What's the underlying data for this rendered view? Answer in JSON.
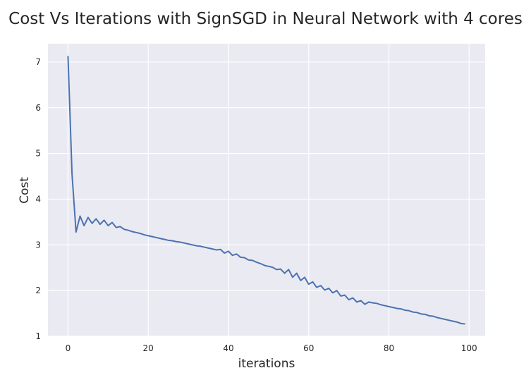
{
  "chart_data": {
    "type": "line",
    "title": "Cost Vs Iterations with SignSGD in Neural Network with 4 cores",
    "xlabel": "iterations",
    "ylabel": "Cost",
    "xlim": [
      -5,
      104
    ],
    "ylim": [
      1.0,
      7.4
    ],
    "xticks": [
      0,
      20,
      40,
      60,
      80,
      100
    ],
    "yticks": [
      1,
      2,
      3,
      4,
      5,
      6,
      7
    ],
    "grid": true,
    "style": {
      "background": "#eaeaf2",
      "grid_color": "#ffffff",
      "line_color": "#4c72b0"
    },
    "series": [
      {
        "values": [
          7.13,
          4.55,
          3.28,
          3.63,
          3.42,
          3.6,
          3.47,
          3.57,
          3.45,
          3.54,
          3.42,
          3.49,
          3.38,
          3.4,
          3.34,
          3.32,
          3.29,
          3.27,
          3.25,
          3.22,
          3.2,
          3.18,
          3.16,
          3.14,
          3.12,
          3.1,
          3.09,
          3.07,
          3.06,
          3.04,
          3.02,
          3.0,
          2.98,
          2.97,
          2.95,
          2.93,
          2.91,
          2.89,
          2.9,
          2.82,
          2.86,
          2.77,
          2.8,
          2.73,
          2.72,
          2.67,
          2.66,
          2.62,
          2.59,
          2.55,
          2.53,
          2.51,
          2.46,
          2.47,
          2.38,
          2.46,
          2.29,
          2.38,
          2.22,
          2.29,
          2.14,
          2.19,
          2.07,
          2.11,
          2.01,
          2.05,
          1.95,
          2.0,
          1.88,
          1.9,
          1.8,
          1.84,
          1.75,
          1.78,
          1.7,
          1.75,
          1.73,
          1.72,
          1.69,
          1.67,
          1.65,
          1.63,
          1.61,
          1.6,
          1.57,
          1.56,
          1.53,
          1.52,
          1.49,
          1.48,
          1.45,
          1.44,
          1.41,
          1.39,
          1.37,
          1.35,
          1.33,
          1.31,
          1.28,
          1.27
        ]
      }
    ]
  }
}
